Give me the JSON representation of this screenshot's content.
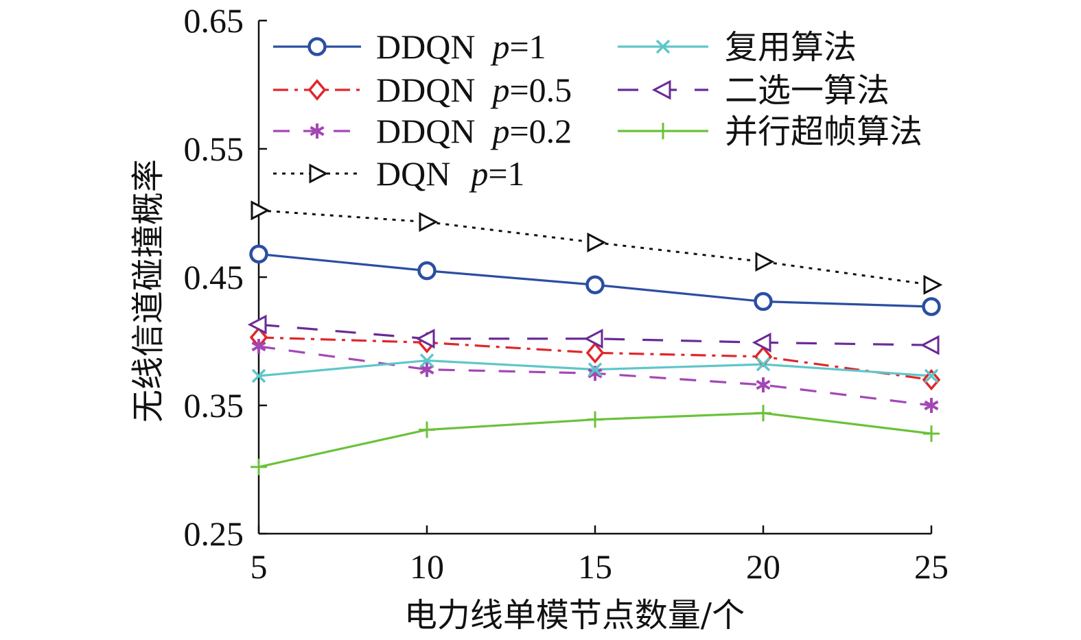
{
  "chart_data": {
    "type": "line",
    "title": "",
    "xlabel": "电力线单模节点数量/个",
    "ylabel": "无线信道碰撞概率",
    "x": [
      5,
      10,
      15,
      20,
      25
    ],
    "xlim": [
      5,
      25
    ],
    "ylim": [
      0.25,
      0.65
    ],
    "xticks": [
      "5",
      "10",
      "15",
      "20",
      "25"
    ],
    "yticks": [
      "0.25",
      "0.35",
      "0.45",
      "0.55",
      "0.65"
    ],
    "grid": false,
    "legend_position": "top",
    "series": [
      {
        "key": "ddqn_p1",
        "name_main": "DDQN",
        "name_param": "p",
        "name_value": "=1",
        "color": "#2b4ea2",
        "dash": "solid",
        "marker": "circle",
        "values": [
          0.468,
          0.455,
          0.444,
          0.431,
          0.427
        ]
      },
      {
        "key": "ddqn_p05",
        "name_main": "DDQN",
        "name_param": "p",
        "name_value": "=0.5",
        "color": "#e0262b",
        "dash": "dashdot",
        "marker": "diamond",
        "values": [
          0.403,
          0.399,
          0.391,
          0.388,
          0.37
        ]
      },
      {
        "key": "ddqn_p02",
        "name_main": "DDQN",
        "name_param": "p",
        "name_value": "=0.2",
        "color": "#a347b5",
        "dash": "dashed",
        "marker": "asterisk",
        "values": [
          0.396,
          0.378,
          0.375,
          0.366,
          0.35
        ]
      },
      {
        "key": "dqn_p1",
        "name_main": "DQN",
        "name_param": "p",
        "name_value": "=1",
        "color": "#111111",
        "dash": "dotted",
        "marker": "triangle-right",
        "values": [
          0.502,
          0.493,
          0.477,
          0.462,
          0.444
        ]
      },
      {
        "key": "reuse",
        "name_cn": "复用算法",
        "color": "#5ec6c9",
        "dash": "solid",
        "marker": "x",
        "values": [
          0.373,
          0.385,
          0.378,
          0.382,
          0.373
        ]
      },
      {
        "key": "choose_one",
        "name_cn": "二选一算法",
        "color": "#6a2a96",
        "dash": "longdash",
        "marker": "triangle-left",
        "values": [
          0.413,
          0.402,
          0.402,
          0.399,
          0.397
        ]
      },
      {
        "key": "parallel",
        "name_cn": "并行超帧算法",
        "color": "#6bc13a",
        "dash": "solid",
        "marker": "plus",
        "values": [
          0.302,
          0.331,
          0.339,
          0.344,
          0.328
        ]
      }
    ]
  }
}
